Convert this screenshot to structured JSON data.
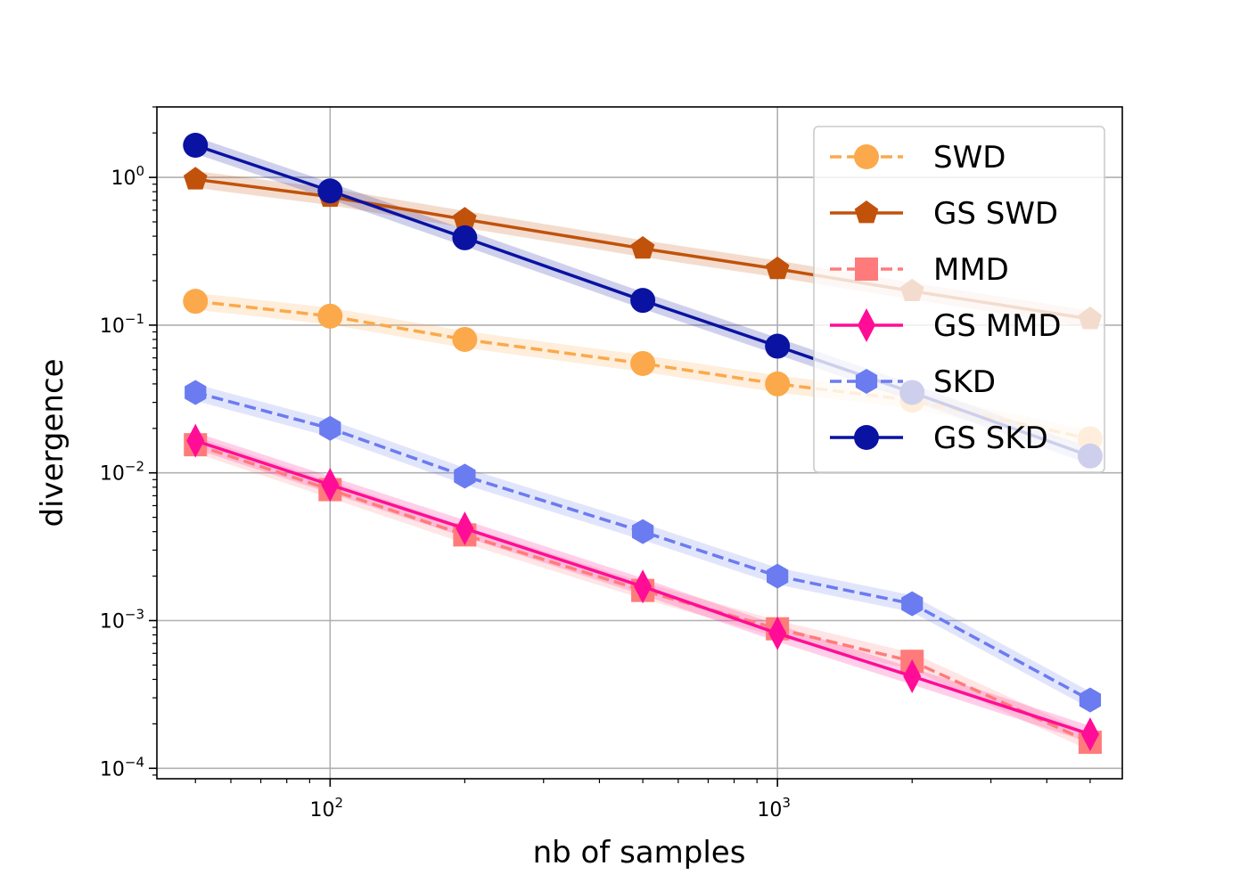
{
  "chart_data": {
    "type": "line",
    "title": "",
    "xlabel": "nb of samples",
    "ylabel": "divergence",
    "xscale": "log",
    "yscale": "log",
    "xlim": [
      41,
      5900
    ],
    "ylim": [
      8.5e-05,
      3.0
    ],
    "grid": true,
    "legend_position": "top-right",
    "x": [
      50,
      100,
      200,
      500,
      1000,
      2000,
      5000
    ],
    "xticks": [
      {
        "value": 100,
        "base": "10",
        "exp": "2"
      },
      {
        "value": 1000,
        "base": "10",
        "exp": "3"
      }
    ],
    "yticks": [
      {
        "value": 1,
        "base": "10",
        "exp": "0"
      },
      {
        "value": 0.1,
        "base": "10",
        "exp": "−1"
      },
      {
        "value": 0.01,
        "base": "10",
        "exp": "−2"
      },
      {
        "value": 0.001,
        "base": "10",
        "exp": "−3"
      },
      {
        "value": 0.0001,
        "base": "10",
        "exp": "−4"
      }
    ],
    "series": [
      {
        "name": "SWD",
        "color": "#FBA94B",
        "dash": true,
        "marker": "circle",
        "values": [
          0.145,
          0.115,
          0.08,
          0.055,
          0.04,
          0.031,
          0.017
        ]
      },
      {
        "name": "GS SWD",
        "color": "#C1520B",
        "dash": false,
        "marker": "pentagon",
        "values": [
          0.97,
          0.74,
          0.52,
          0.33,
          0.24,
          0.17,
          0.11
        ]
      },
      {
        "name": "MMD",
        "color": "#FF7B7B",
        "dash": true,
        "marker": "square",
        "values": [
          0.0155,
          0.0077,
          0.0038,
          0.0016,
          0.00088,
          0.00053,
          0.00015
        ]
      },
      {
        "name": "GS MMD",
        "color": "#FF0D96",
        "dash": false,
        "marker": "diamond",
        "values": [
          0.0165,
          0.0083,
          0.0042,
          0.0017,
          0.00082,
          0.00042,
          0.00017
        ]
      },
      {
        "name": "SKD",
        "color": "#6B7BF0",
        "dash": true,
        "marker": "hexagon",
        "values": [
          0.035,
          0.02,
          0.0095,
          0.004,
          0.002,
          0.0013,
          0.00029
        ]
      },
      {
        "name": "GS SKD",
        "color": "#0A12A2",
        "dash": false,
        "marker": "circle",
        "values": [
          1.65,
          0.81,
          0.39,
          0.147,
          0.072,
          0.035,
          0.013
        ]
      }
    ]
  }
}
